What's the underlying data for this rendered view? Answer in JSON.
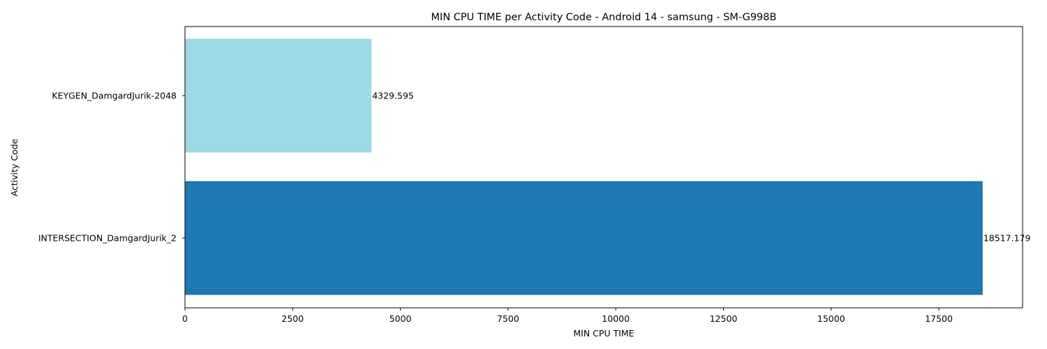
{
  "chart_data": {
    "type": "bar",
    "orientation": "horizontal",
    "title": "MIN CPU TIME per Activity Code - Android 14 - samsung - SM-G998B",
    "xlabel": "MIN CPU TIME",
    "ylabel": "Activity Code",
    "categories": [
      "INTERSECTION_DamgardJurik_2",
      "KEYGEN_DamgardJurik-2048"
    ],
    "values": [
      18517.179,
      4329.595
    ],
    "data_labels": [
      "18517.179",
      "4329.595"
    ],
    "colors": [
      "#1f77b4",
      "#9edae5"
    ],
    "xlim": [
      0,
      19443
    ],
    "x_ticks": [
      0,
      2500,
      5000,
      7500,
      10000,
      12500,
      15000,
      17500
    ],
    "x_tick_labels": [
      "0",
      "2500",
      "5000",
      "7500",
      "10000",
      "12500",
      "15000",
      "17500"
    ],
    "grid": false,
    "legend": "none"
  }
}
